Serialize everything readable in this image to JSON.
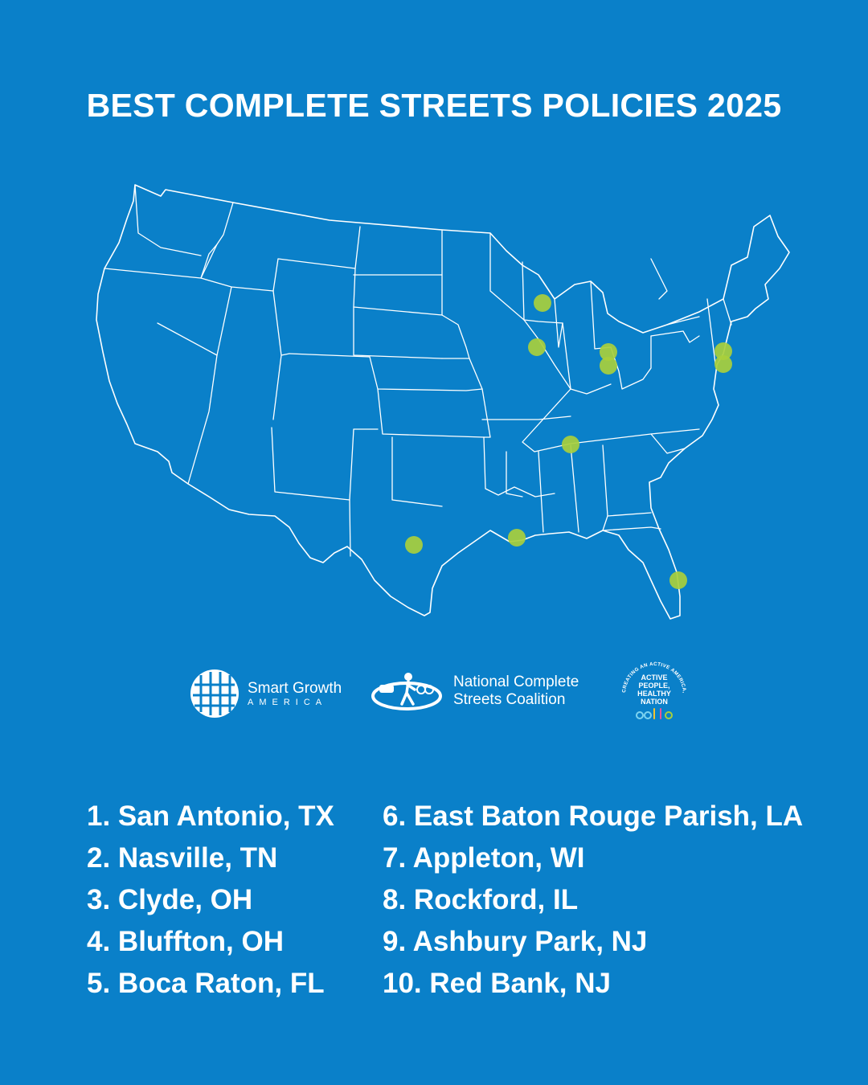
{
  "title": "BEST COMPLETE STREETS POLICIES 2025",
  "colors": {
    "background": "#0a80c9",
    "outline": "#ffffff",
    "marker": "#a9cf3c"
  },
  "map": {
    "description_icon": "us-states-outline-map",
    "markers": [
      {
        "label": "San Antonio, TX"
      },
      {
        "label": "Nasville, TN"
      },
      {
        "label": "Clyde, OH"
      },
      {
        "label": "Bluffton, OH"
      },
      {
        "label": "Boca Raton, FL"
      },
      {
        "label": "East Baton Rouge Parish, LA"
      },
      {
        "label": "Appleton, WI"
      },
      {
        "label": "Rockford, IL"
      },
      {
        "label": "Ashbury Park, NJ"
      },
      {
        "label": "Red Bank, NJ"
      }
    ]
  },
  "logos": {
    "smart_growth": {
      "line1": "Smart Growth",
      "line2": "AMERICA",
      "icon": "sga-grid-logo"
    },
    "ncsc": {
      "line1": "National Complete",
      "line2": "Streets Coalition",
      "icon": "ncsc-pedestrian-logo"
    },
    "aphn": {
      "arc": "CREATING AN ACTIVE AMERICA, TOGETHER",
      "line1": "ACTIVE",
      "line2": "PEOPLE,",
      "line3": "HEALTHY",
      "line4": "NATION",
      "icon": "aphn-seal-logo"
    }
  },
  "rankings": {
    "left": [
      "1. San Antonio, TX",
      "2. Nasville, TN",
      "3. Clyde, OH",
      "4. Bluffton, OH",
      "5. Boca Raton, FL"
    ],
    "right": [
      "6. East Baton Rouge Parish, LA",
      "7. Appleton, WI",
      "8. Rockford, IL",
      "9. Ashbury Park, NJ",
      "10. Red Bank, NJ"
    ]
  }
}
